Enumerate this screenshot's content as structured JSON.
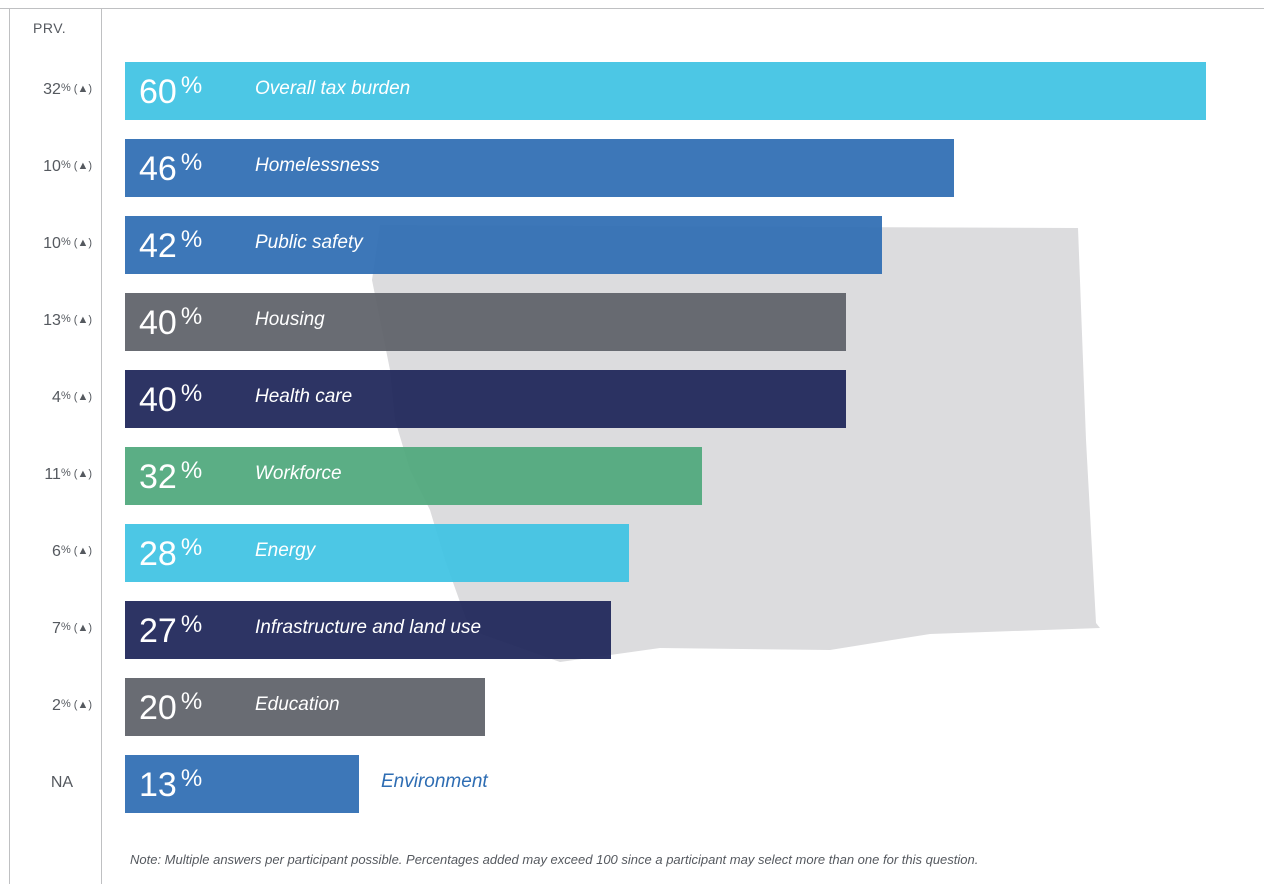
{
  "chart_data": {
    "type": "bar",
    "orientation": "horizontal",
    "value_unit": "%",
    "xlim": [
      0,
      60
    ],
    "prv_header": "PRV.",
    "categories": [
      "Overall tax burden",
      "Homelessness",
      "Public safety",
      "Housing",
      "Health care",
      "Workforce",
      "Energy",
      "Infrastructure and land use",
      "Education",
      "Environment"
    ],
    "values": [
      60,
      46,
      42,
      40,
      40,
      32,
      28,
      27,
      20,
      13
    ],
    "previous": [
      "32%",
      "10%",
      "10%",
      "13%",
      "4%",
      "11%",
      "6%",
      "7%",
      "2%",
      "NA"
    ],
    "previous_trend": [
      "▲",
      "▲",
      "▲",
      "▲",
      "▲",
      "▲",
      "▲",
      "▲",
      "▲",
      ""
    ],
    "bar_colors": [
      "#3ec3e3",
      "#2e6db3",
      "#2e6db3",
      "#5e6168",
      "#1d2558",
      "#4fa87c",
      "#3ec3e3",
      "#1d2558",
      "#5e6168",
      "#2e6db3"
    ],
    "note": "Note: Multiple answers per participant possible. Percentages added may exceed 100 since a participant may select more than one for this question."
  },
  "colors": {
    "map_fill": "#dcdcde",
    "text_gray": "#55595f",
    "label_blue": "#2e6db3"
  }
}
